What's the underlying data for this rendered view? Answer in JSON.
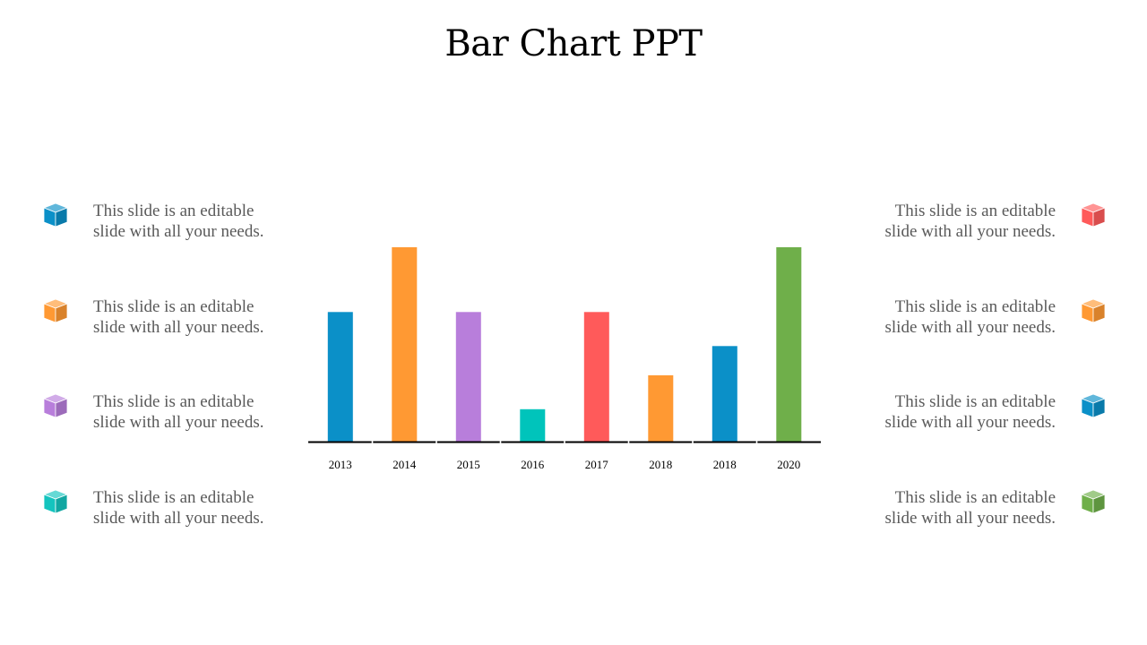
{
  "title": "Bar Chart PPT",
  "items_left": [
    {
      "line1": "This slide is an editable",
      "line2": "slide with all your needs.",
      "icon": "cube-icon",
      "color": "#0B90C8"
    },
    {
      "line1": "This slide is an editable",
      "line2": "slide with all your needs.",
      "icon": "cube-icon",
      "color": "#FF9933"
    },
    {
      "line1": "This slide is an editable",
      "line2": "slide with all your needs.",
      "icon": "cube-icon",
      "color": "#B87EDB"
    },
    {
      "line1": "This slide is an editable",
      "line2": "slide with all your needs.",
      "icon": "cube-icon",
      "color": "#14C4BE"
    }
  ],
  "items_right": [
    {
      "line1": "This slide is an editable",
      "line2": "slide with all your needs.",
      "icon": "cube-icon",
      "color": "#FF5A5A"
    },
    {
      "line1": "This slide is an editable",
      "line2": "slide with all your needs.",
      "icon": "cube-icon",
      "color": "#FF9933"
    },
    {
      "line1": "This slide is an editable",
      "line2": "slide with all your needs.",
      "icon": "cube-icon",
      "color": "#0B90C8"
    },
    {
      "line1": "This slide is an editable",
      "line2": "slide with all your needs.",
      "icon": "cube-icon",
      "color": "#6FAF4A"
    }
  ],
  "chart_data": {
    "type": "bar",
    "title": "",
    "xlabel": "",
    "ylabel": "",
    "categories": [
      "2013",
      "2014",
      "2015",
      "2016",
      "2017",
      "2018",
      "2018",
      "2020"
    ],
    "values": [
      40,
      60,
      40,
      10,
      40,
      20.5,
      29.5,
      60
    ],
    "colors": [
      "#0B90C8",
      "#FF9933",
      "#B87EDB",
      "#00C4BB",
      "#FF5A5A",
      "#FF9933",
      "#0B90C8",
      "#6FAF4A"
    ],
    "ylim": [
      0,
      60
    ],
    "grid": false,
    "legend": "none"
  }
}
